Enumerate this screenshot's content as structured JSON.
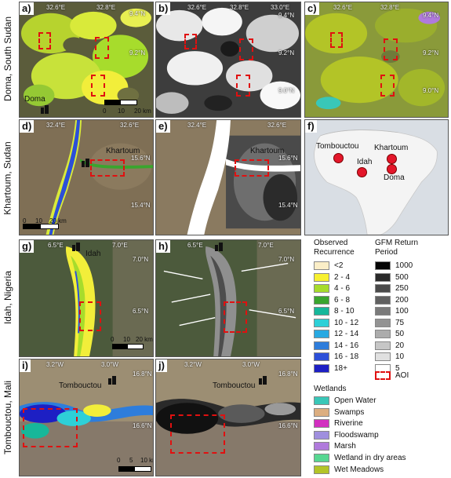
{
  "rows": [
    {
      "label": "Doma, South Sudan"
    },
    {
      "label": "Khartoum, Sudan"
    },
    {
      "label": "Idah, Nigeria"
    },
    {
      "label": "Tombouctou, Mali"
    }
  ],
  "panels": {
    "a": {
      "label": "a)",
      "ticks": [
        "32.6°E",
        "32.8°E",
        "9.4°N",
        "9.2°N"
      ],
      "place": "Doma",
      "scale": [
        "0",
        "10",
        "20 km"
      ]
    },
    "b": {
      "label": "b)",
      "ticks": [
        "32.6°E",
        "32.8°E",
        "33.0°E",
        "9.4°N",
        "9.2°N",
        "9.0°N"
      ]
    },
    "c": {
      "label": "c)",
      "ticks": [
        "32.6°E",
        "32.8°E",
        "9.4°N",
        "9.2°N",
        "9.0°N"
      ]
    },
    "d": {
      "label": "d)",
      "ticks": [
        "32.4°E",
        "32.6°E",
        "15.6°N",
        "15.4°N"
      ],
      "place": "Khartoum",
      "scale": [
        "0",
        "10",
        "20 km"
      ]
    },
    "e": {
      "label": "e)",
      "ticks": [
        "32.4°E",
        "32.6°E",
        "15.6°N",
        "15.4°N"
      ],
      "place": "Khartoum"
    },
    "f": {
      "label": "f)",
      "cities": [
        "Tombouctou",
        "Khartoum",
        "Idah",
        "Doma"
      ]
    },
    "g": {
      "label": "g)",
      "ticks": [
        "6.5°E",
        "7.0°E",
        "7.0°N",
        "6.5°N"
      ],
      "place": "Idah",
      "scale": [
        "0",
        "10",
        "20 km"
      ]
    },
    "h": {
      "label": "h)",
      "ticks": [
        "6.5°E",
        "7.0°E",
        "7.0°N",
        "6.5°N"
      ]
    },
    "i": {
      "label": "i)",
      "ticks": [
        "3.2°W",
        "3.0°W",
        "16.8°N",
        "16.6°N"
      ],
      "place": "Tombouctou",
      "scale": [
        "0",
        "5",
        "10 km"
      ]
    },
    "j": {
      "label": "j)",
      "ticks": [
        "3.2°W",
        "3.0°W",
        "16.8°N",
        "16.6°N"
      ],
      "place": "Tombouctou"
    }
  },
  "legend": {
    "observed_title": [
      "Observed",
      "Recurrence"
    ],
    "observed": [
      {
        "label": "<2",
        "color": "#fbeec7"
      },
      {
        "label": "2 - 4",
        "color": "#f7f030"
      },
      {
        "label": "4 - 6",
        "color": "#a7dc2c"
      },
      {
        "label": "6 - 8",
        "color": "#3aa52e"
      },
      {
        "label": "8 - 10",
        "color": "#17b79a"
      },
      {
        "label": "10 - 12",
        "color": "#2ed0d7"
      },
      {
        "label": "12 - 14",
        "color": "#28a9e2"
      },
      {
        "label": "14 - 16",
        "color": "#2e7ddb"
      },
      {
        "label": "16 - 18",
        "color": "#2c4fd8"
      },
      {
        "label": "18+",
        "color": "#1d1fc4"
      }
    ],
    "gfm_title": [
      "GFM Return",
      "Period"
    ],
    "gfm": [
      {
        "label": "1000",
        "color": "#050505"
      },
      {
        "label": "500",
        "color": "#2a2a2a"
      },
      {
        "label": "250",
        "color": "#4a4a4a"
      },
      {
        "label": "200",
        "color": "#606060"
      },
      {
        "label": "100",
        "color": "#7a7a7a"
      },
      {
        "label": "75",
        "color": "#939393"
      },
      {
        "label": "50",
        "color": "#acacac"
      },
      {
        "label": "20",
        "color": "#c6c6c6"
      },
      {
        "label": "10",
        "color": "#e0e0e0"
      },
      {
        "label": "5",
        "color": "#ffffff"
      }
    ],
    "aoi": "AOI",
    "wetlands_title": "Wetlands",
    "wetlands": [
      {
        "label": "Open Water",
        "color": "#39c7b8"
      },
      {
        "label": "Swamps",
        "color": "#dcae80"
      },
      {
        "label": "Riverine",
        "color": "#d22fc0"
      },
      {
        "label": "Floodswamp",
        "color": "#9f8fde"
      },
      {
        "label": "Marsh",
        "color": "#b07adc"
      },
      {
        "label": "Wetland in dry areas",
        "color": "#57d791"
      },
      {
        "label": "Wet Meadows",
        "color": "#b3c427"
      }
    ]
  }
}
